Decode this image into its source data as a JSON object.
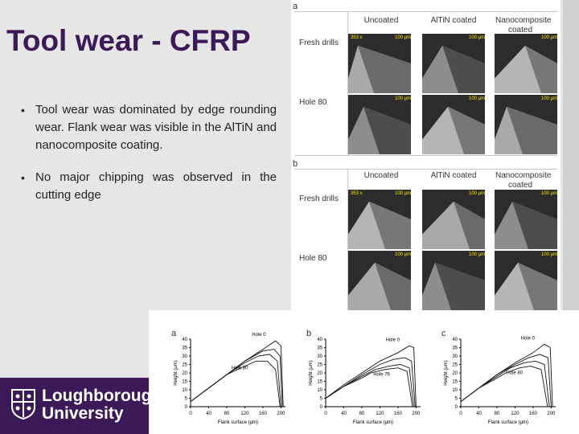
{
  "slide": {
    "title": "Tool wear - CFRP",
    "bullets": [
      "Tool wear was dominated by edge rounding wear. Flank wear was visible in the AlTiN and nanocomposite coating.",
      "No major chipping was observed in the cutting edge"
    ]
  },
  "logo": {
    "line1": "Loughborough",
    "line2": "University"
  },
  "figure_table": {
    "columns": [
      "Uncoated",
      "AlTiN coated",
      "Nanocomposite coated"
    ],
    "panels": [
      {
        "label": "a",
        "rows": [
          "Fresh drills",
          "Hole 80"
        ]
      },
      {
        "label": "b",
        "rows": [
          "Fresh drills",
          "Hole 80"
        ]
      }
    ],
    "scale_bar": "100 μm",
    "magnification": "353 x"
  },
  "chart_data": [
    {
      "type": "line",
      "panel_label": "a",
      "xlabel": "Flank surface (μm)",
      "ylabel": "Height (μm)",
      "xlim": [
        0,
        210
      ],
      "ylim": [
        0,
        40
      ],
      "xticks": [
        0,
        40,
        80,
        120,
        160,
        200
      ],
      "yticks": [
        0,
        5,
        10,
        15,
        20,
        25,
        30,
        35,
        40
      ],
      "annotations": [
        "Hole 0",
        "Hole 80"
      ],
      "series": [
        {
          "name": "Hole 0",
          "x": [
            0,
            40,
            80,
            120,
            160,
            188,
            200,
            205
          ],
          "y": [
            3,
            11,
            19,
            27,
            34,
            39,
            36,
            0
          ]
        },
        {
          "name": "",
          "x": [
            0,
            40,
            80,
            120,
            160,
            185,
            198,
            203
          ],
          "y": [
            3,
            11,
            19,
            27,
            33,
            34,
            30,
            0
          ]
        },
        {
          "name": "",
          "x": [
            0,
            40,
            80,
            120,
            150,
            175,
            192,
            200
          ],
          "y": [
            3,
            11,
            19,
            26,
            30,
            31,
            27,
            0
          ]
        },
        {
          "name": "Hole 80",
          "x": [
            0,
            40,
            80,
            120,
            145,
            170,
            188,
            198
          ],
          "y": [
            3,
            11,
            19,
            24,
            27,
            27,
            22,
            0
          ]
        }
      ]
    },
    {
      "type": "line",
      "panel_label": "b",
      "xlabel": "Flank surface (μm)",
      "ylabel": "Height (μm)",
      "xlim": [
        0,
        210
      ],
      "ylim": [
        0,
        40
      ],
      "xticks": [
        0,
        40,
        80,
        120,
        160,
        200
      ],
      "yticks": [
        0,
        5,
        10,
        15,
        20,
        25,
        30,
        35,
        40
      ],
      "annotations": [
        "Hole 0",
        "Hole 76"
      ],
      "series": [
        {
          "name": "Hole 0",
          "x": [
            0,
            40,
            80,
            120,
            160,
            185,
            195,
            200
          ],
          "y": [
            5,
            13,
            20,
            27,
            32,
            36,
            35,
            0
          ]
        },
        {
          "name": "",
          "x": [
            0,
            40,
            80,
            120,
            150,
            175,
            190,
            198
          ],
          "y": [
            5,
            12,
            19,
            25,
            28,
            29,
            27,
            0
          ]
        },
        {
          "name": "",
          "x": [
            0,
            40,
            80,
            110,
            140,
            165,
            185,
            195
          ],
          "y": [
            5,
            12,
            18,
            22,
            24,
            25,
            23,
            0
          ]
        },
        {
          "name": "Hole 76",
          "x": [
            0,
            40,
            80,
            100,
            130,
            160,
            180,
            192
          ],
          "y": [
            5,
            12,
            17,
            20,
            22,
            23,
            21,
            0
          ]
        }
      ]
    },
    {
      "type": "line",
      "panel_label": "c",
      "xlabel": "Flank surface (μm)",
      "ylabel": "Height (μm)",
      "xlim": [
        0,
        210
      ],
      "ylim": [
        0,
        40
      ],
      "xticks": [
        0,
        40,
        80,
        120,
        160,
        200
      ],
      "yticks": [
        0,
        5,
        10,
        15,
        20,
        25,
        30,
        35,
        40
      ],
      "annotations": [
        "Hole 0",
        "Hole 80"
      ],
      "series": [
        {
          "name": "Hole 0",
          "x": [
            0,
            40,
            80,
            120,
            160,
            185,
            198,
            203
          ],
          "y": [
            3,
            11,
            19,
            26,
            32,
            37,
            35,
            0
          ]
        },
        {
          "name": "",
          "x": [
            0,
            40,
            80,
            120,
            150,
            175,
            193,
            200
          ],
          "y": [
            3,
            11,
            19,
            25,
            29,
            31,
            29,
            0
          ]
        },
        {
          "name": "",
          "x": [
            0,
            40,
            80,
            110,
            140,
            165,
            185,
            196
          ],
          "y": [
            3,
            11,
            18,
            23,
            26,
            27,
            25,
            0
          ]
        },
        {
          "name": "Hole 80",
          "x": [
            0,
            40,
            80,
            100,
            130,
            155,
            178,
            192
          ],
          "y": [
            3,
            11,
            17,
            20,
            23,
            24,
            22,
            0
          ]
        }
      ]
    }
  ]
}
